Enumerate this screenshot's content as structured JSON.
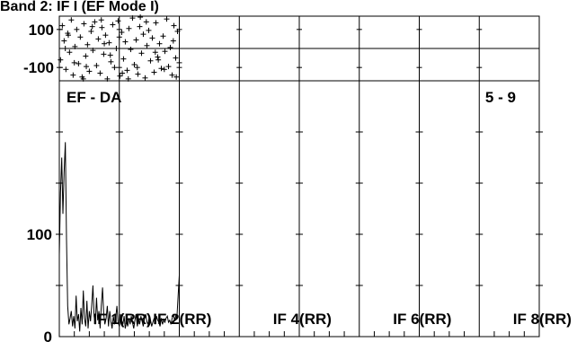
{
  "title": "Band 2: IF I (EF Mode I)",
  "chart_data": [
    {
      "type": "scatter",
      "yticks": [
        100,
        -100
      ],
      "ylim": [
        -170,
        170
      ],
      "marker": "+",
      "points": [
        [
          0.02,
          -60
        ],
        [
          0.05,
          120
        ],
        [
          0.08,
          40
        ],
        [
          0.11,
          -110
        ],
        [
          0.14,
          80
        ],
        [
          0.17,
          -20
        ],
        [
          0.2,
          150
        ],
        [
          0.23,
          -140
        ],
        [
          0.26,
          10
        ],
        [
          0.29,
          100
        ],
        [
          0.32,
          -80
        ],
        [
          0.35,
          60
        ],
        [
          0.38,
          -150
        ],
        [
          0.41,
          130
        ],
        [
          0.44,
          -40
        ],
        [
          0.47,
          20
        ],
        [
          0.5,
          -120
        ],
        [
          0.53,
          90
        ],
        [
          0.56,
          -10
        ],
        [
          0.59,
          140
        ],
        [
          0.62,
          -90
        ],
        [
          0.65,
          50
        ],
        [
          0.68,
          -130
        ],
        [
          0.71,
          110
        ],
        [
          0.74,
          -30
        ],
        [
          0.77,
          70
        ],
        [
          0.8,
          -160
        ],
        [
          0.83,
          30
        ],
        [
          0.86,
          -70
        ],
        [
          0.89,
          125
        ],
        [
          0.92,
          -100
        ],
        [
          0.95,
          0
        ],
        [
          0.98,
          145
        ],
        [
          1.01,
          -145
        ],
        [
          1.04,
          85
        ],
        [
          1.07,
          -55
        ],
        [
          1.1,
          35
        ],
        [
          1.13,
          -115
        ],
        [
          1.16,
          105
        ],
        [
          1.19,
          -5
        ],
        [
          1.22,
          160
        ],
        [
          1.25,
          -85
        ],
        [
          1.28,
          45
        ],
        [
          1.31,
          -135
        ],
        [
          1.34,
          115
        ],
        [
          1.37,
          -25
        ],
        [
          1.4,
          75
        ],
        [
          1.43,
          -155
        ],
        [
          1.46,
          15
        ],
        [
          1.49,
          95
        ],
        [
          1.52,
          -65
        ],
        [
          1.55,
          55
        ],
        [
          1.58,
          -125
        ],
        [
          1.61,
          135
        ],
        [
          1.64,
          -45
        ],
        [
          1.67,
          25
        ],
        [
          1.7,
          -105
        ],
        [
          1.73,
          65
        ],
        [
          1.76,
          -15
        ],
        [
          1.79,
          155
        ],
        [
          1.82,
          -95
        ],
        [
          1.85,
          5
        ],
        [
          1.88,
          -140
        ],
        [
          1.91,
          120
        ],
        [
          1.94,
          -50
        ],
        [
          1.97,
          90
        ],
        [
          2.0,
          -75
        ],
        [
          0.1,
          0
        ],
        [
          0.4,
          -160
        ],
        [
          0.7,
          150
        ],
        [
          1.0,
          60
        ],
        [
          1.3,
          -100
        ],
        [
          1.6,
          -20
        ],
        [
          1.9,
          40
        ],
        [
          0.25,
          -75
        ],
        [
          0.55,
          115
        ],
        [
          0.85,
          -35
        ],
        [
          1.15,
          -160
        ],
        [
          1.45,
          140
        ],
        [
          1.75,
          -110
        ],
        [
          0.15,
          70
        ],
        [
          0.45,
          -95
        ],
        [
          0.75,
          25
        ],
        [
          1.05,
          -130
        ],
        [
          1.35,
          165
        ],
        [
          1.65,
          -60
        ],
        [
          1.95,
          -150
        ]
      ]
    },
    {
      "type": "line",
      "title": "EF - DA",
      "annotation": "5 - 9",
      "yticks": [
        100,
        0
      ],
      "ylim": [
        0,
        250
      ],
      "if_labels": [
        "IF 1(RR)",
        "IF 2(RR)",
        "IF 4(RR)",
        "IF 6(RR)",
        "IF 8(RR)"
      ],
      "x": [
        0.0,
        0.02,
        0.04,
        0.06,
        0.08,
        0.1,
        0.12,
        0.14,
        0.16,
        0.18,
        0.2,
        0.22,
        0.24,
        0.26,
        0.28,
        0.3,
        0.32,
        0.34,
        0.36,
        0.38,
        0.4,
        0.42,
        0.44,
        0.46,
        0.48,
        0.5,
        0.52,
        0.54,
        0.56,
        0.58,
        0.6,
        0.62,
        0.64,
        0.66,
        0.68,
        0.7,
        0.72,
        0.74,
        0.76,
        0.78,
        0.8,
        0.82,
        0.84,
        0.86,
        0.88,
        0.9,
        0.92,
        0.94,
        0.96,
        0.98,
        1.0,
        1.02,
        1.04,
        1.06,
        1.08,
        1.1,
        1.12,
        1.14,
        1.16,
        1.18,
        1.2,
        1.22,
        1.24,
        1.26,
        1.28,
        1.3,
        1.32,
        1.34,
        1.36,
        1.38,
        1.4,
        1.42,
        1.44,
        1.46,
        1.48,
        1.5,
        1.52,
        1.54,
        1.56,
        1.58,
        1.6,
        1.62,
        1.64,
        1.66,
        1.68,
        1.7,
        1.72,
        1.74,
        1.76,
        1.78,
        1.8,
        1.82,
        1.84,
        1.86,
        1.88,
        1.9,
        1.92,
        1.94,
        1.96,
        1.98,
        2.0
      ],
      "y": [
        80,
        140,
        175,
        120,
        160,
        190,
        95,
        30,
        12,
        18,
        25,
        10,
        20,
        8,
        40,
        15,
        22,
        5,
        28,
        12,
        45,
        18,
        10,
        35,
        8,
        25,
        15,
        30,
        50,
        20,
        12,
        38,
        16,
        25,
        8,
        30,
        48,
        22,
        12,
        18,
        30,
        10,
        25,
        15,
        8,
        20,
        12,
        18,
        30,
        14,
        10,
        22,
        16,
        12,
        20,
        8,
        15,
        10,
        18,
        12,
        20,
        14,
        8,
        16,
        22,
        10,
        18,
        12,
        20,
        15,
        10,
        18,
        22,
        14,
        12,
        20,
        16,
        10,
        14,
        18,
        12,
        20,
        16,
        14,
        10,
        18,
        12,
        16,
        14,
        18,
        20,
        14,
        16,
        12,
        18,
        22,
        16,
        20,
        18,
        40,
        60
      ]
    }
  ]
}
